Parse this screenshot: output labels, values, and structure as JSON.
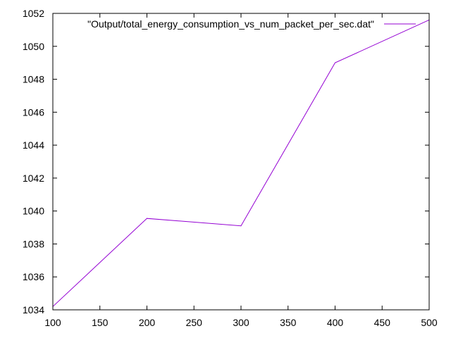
{
  "chart_data": {
    "type": "line",
    "title": "",
    "xlabel": "",
    "ylabel": "",
    "xlim": [
      100,
      500
    ],
    "ylim": [
      1034,
      1052
    ],
    "xticks": [
      100,
      150,
      200,
      250,
      300,
      350,
      400,
      450,
      500
    ],
    "yticks": [
      1034,
      1036,
      1038,
      1040,
      1042,
      1044,
      1046,
      1048,
      1050,
      1052
    ],
    "grid": false,
    "legend_position": "top-right",
    "series": [
      {
        "name": "\"Output/total_energy_consumption_vs_num_packet_per_sec.dat\"",
        "color": "#9400d3",
        "x": [
          100,
          200,
          300,
          400,
          500
        ],
        "y": [
          1034.2,
          1039.55,
          1039.1,
          1049.0,
          1051.6
        ]
      }
    ]
  }
}
